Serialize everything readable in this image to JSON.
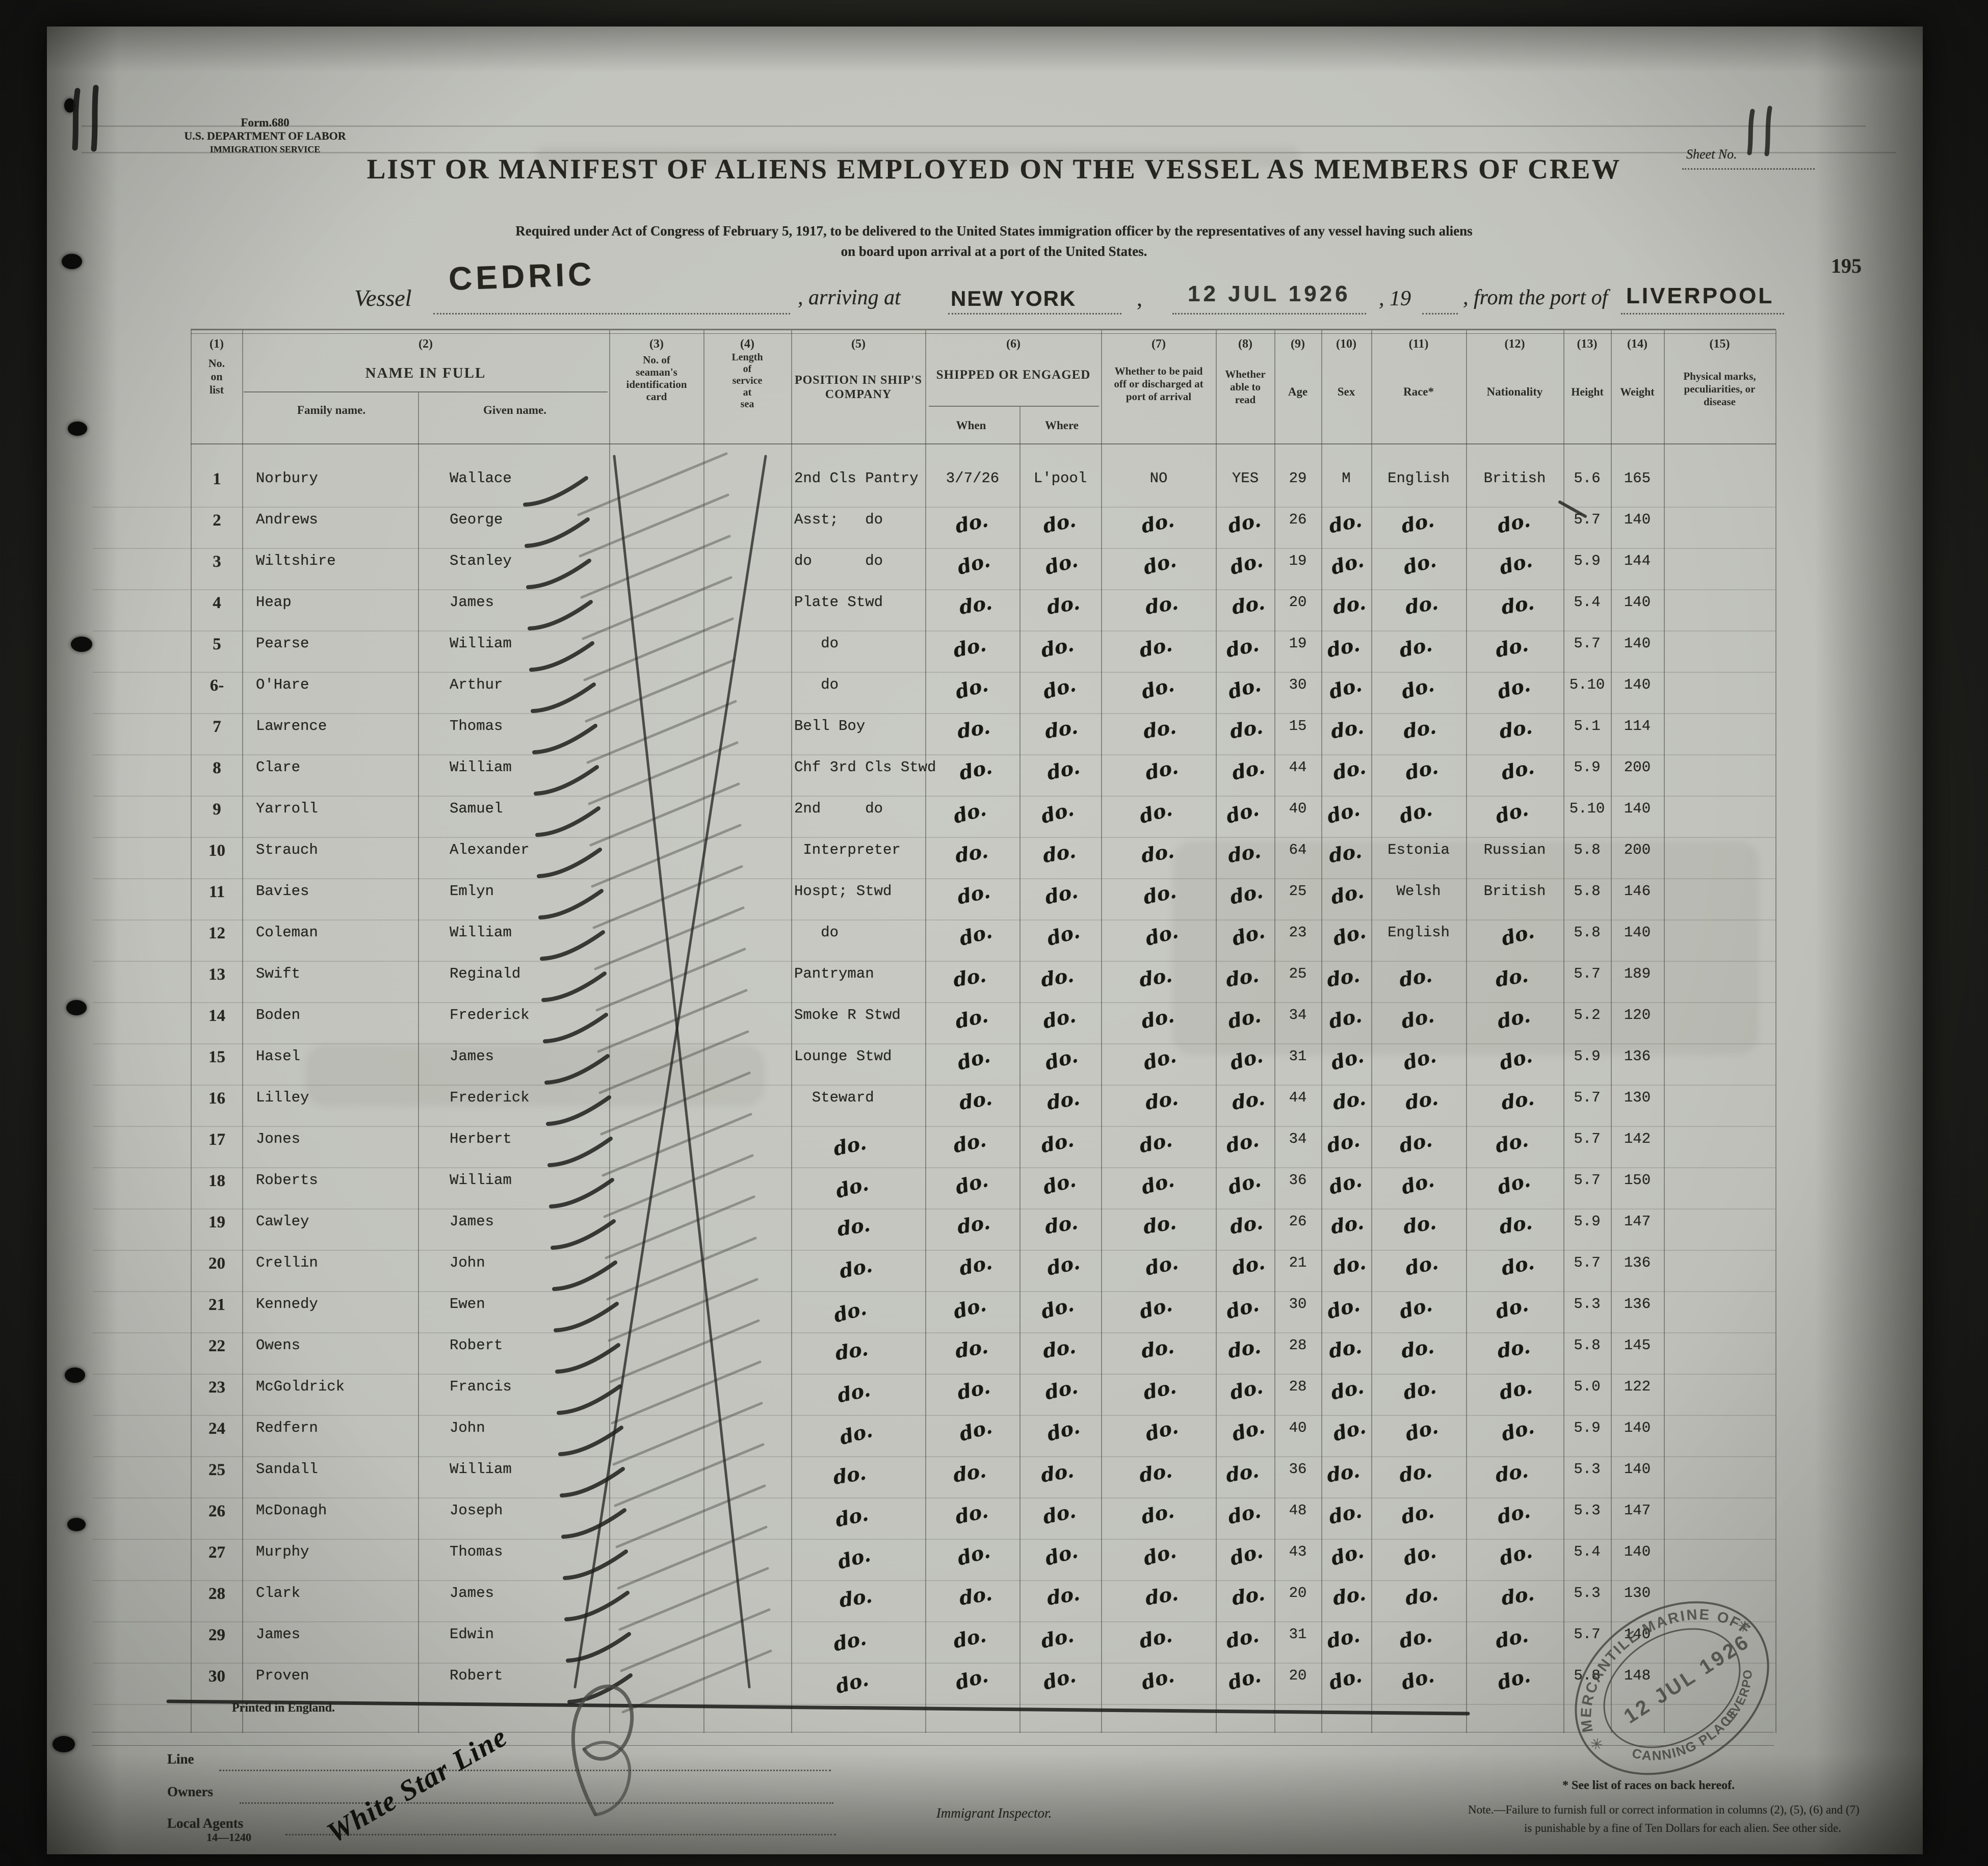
{
  "page": {
    "handwritten_mark": "11",
    "form_no": "Form.680",
    "department": "U.S. DEPARTMENT OF LABOR",
    "service": "IMMIGRATION SERVICE",
    "sheet_label": "Sheet No.",
    "sheet_no": "11",
    "page_stamp_no": "195",
    "title": "LIST OR MANIFEST OF ALIENS EMPLOYED ON THE VESSEL AS MEMBERS OF CREW",
    "subtitle_line1": "Required under Act of Congress of February 5, 1917, to be delivered to the United States immigration officer by the representatives of any vessel having such aliens",
    "subtitle_line2": "on board upon arrival at a port of the United States.",
    "vessel_label": "Vessel",
    "vessel_name": "CEDRIC",
    "arriving_label": ", arriving at",
    "port_of_arrival": "NEW YORK",
    "arrival_date_stamp": "12 JUL 1926",
    "year_fragment": ", 19",
    "from_label": ", from the port of",
    "port_of_departure": "LIVERPOOL"
  },
  "table": {
    "columns": {
      "c1": {
        "num": "(1)",
        "label": "No.\non\nlist"
      },
      "c2": {
        "num": "(2)",
        "label": "NAME IN FULL",
        "sub1": "Family name.",
        "sub2": "Given name."
      },
      "c3": {
        "num": "(3)",
        "label": "No. of\nseaman's\nidentification\ncard"
      },
      "c4": {
        "num": "(4)",
        "label": "Length\nof\nservice\nat\nsea"
      },
      "c5": {
        "num": "(5)",
        "label": "POSITION IN SHIP'S\nCOMPANY"
      },
      "c6": {
        "num": "(6)",
        "label": "SHIPPED OR ENGAGED",
        "sub1": "When",
        "sub2": "Where"
      },
      "c7": {
        "num": "(7)",
        "label": "Whether to be paid\noff or discharged at\nport of arrival"
      },
      "c8": {
        "num": "(8)",
        "label": "Whether\nable to\nread"
      },
      "c9": {
        "num": "(9)",
        "label": "Age"
      },
      "c10": {
        "num": "(10)",
        "label": "Sex"
      },
      "c11": {
        "num": "(11)",
        "label": "Race*"
      },
      "c12": {
        "num": "(12)",
        "label": "Nationality"
      },
      "c13": {
        "num": "(13)",
        "label": "Height"
      },
      "c14": {
        "num": "(14)",
        "label": "Weight"
      },
      "c15": {
        "num": "(15)",
        "label": "Physical marks,\npeculiarities, or\ndisease"
      }
    },
    "rows": [
      {
        "no": "1",
        "family": "Norbury",
        "given": "Wallace",
        "position": "2nd Cls Pantry",
        "when": "3/7/26",
        "where": "L'pool",
        "paid": "NO",
        "read": "YES",
        "age": "29",
        "sex": "M",
        "race": "English",
        "nat": "British",
        "height": "5.6",
        "weight": "165"
      },
      {
        "no": "2",
        "family": "Andrews",
        "given": "George",
        "position": "Asst;   do",
        "when": "do.",
        "where": "do.",
        "paid": "do.",
        "read": "do.",
        "age": "26",
        "sex": "do.",
        "race": "do.",
        "nat": "do.",
        "height": "5.7",
        "weight": "140"
      },
      {
        "no": "3",
        "family": "Wiltshire",
        "given": "Stanley",
        "position": "do      do",
        "when": "do.",
        "where": "do.",
        "paid": "do.",
        "read": "do.",
        "age": "19",
        "sex": "do.",
        "race": "do.",
        "nat": "do.",
        "height": "5.9",
        "weight": "144"
      },
      {
        "no": "4",
        "family": "Heap",
        "given": "James",
        "position": "Plate Stwd",
        "when": "do.",
        "where": "do.",
        "paid": "do.",
        "read": "do.",
        "age": "20",
        "sex": "do.",
        "race": "do.",
        "nat": "do.",
        "height": "5.4",
        "weight": "140"
      },
      {
        "no": "5",
        "family": "Pearse",
        "given": "William",
        "position": "   do",
        "when": "do.",
        "where": "do.",
        "paid": "do.",
        "read": "do.",
        "age": "19",
        "sex": "do.",
        "race": "do.",
        "nat": "do.",
        "height": "5.7",
        "weight": "140"
      },
      {
        "no": "6-",
        "family": "O'Hare",
        "given": "Arthur",
        "position": "   do",
        "when": "do.",
        "where": "do.",
        "paid": "do.",
        "read": "do.",
        "age": "30",
        "sex": "do.",
        "race": "do.",
        "nat": "do.",
        "height": "5.10",
        "weight": "140"
      },
      {
        "no": "7",
        "family": "Lawrence",
        "given": "Thomas",
        "position": "Bell Boy",
        "when": "do.",
        "where": "do.",
        "paid": "do.",
        "read": "do.",
        "age": "15",
        "sex": "do.",
        "race": "do.",
        "nat": "do.",
        "height": "5.1",
        "weight": "114"
      },
      {
        "no": "8",
        "family": "Clare",
        "given": "William",
        "position": "Chf 3rd Cls Stwd",
        "when": "do.",
        "where": "do.",
        "paid": "do.",
        "read": "do.",
        "age": "44",
        "sex": "do.",
        "race": "do.",
        "nat": "do.",
        "height": "5.9",
        "weight": "200"
      },
      {
        "no": "9",
        "family": "Yarroll",
        "given": "Samuel",
        "position": "2nd     do",
        "when": "do.",
        "where": "do.",
        "paid": "do.",
        "read": "do.",
        "age": "40",
        "sex": "do.",
        "race": "do.",
        "nat": "do.",
        "height": "5.10",
        "weight": "140"
      },
      {
        "no": "10",
        "family": "Strauch",
        "given": "Alexander",
        "position": " Interpreter",
        "when": "do.",
        "where": "do.",
        "paid": "do.",
        "read": "do.",
        "age": "64",
        "sex": "do.",
        "race": "Estonia",
        "nat": "Russian",
        "height": "5.8",
        "weight": "200"
      },
      {
        "no": "11",
        "family": "Bavies",
        "given": "Emlyn",
        "position": "Hospt; Stwd",
        "when": "do.",
        "where": "do.",
        "paid": "do.",
        "read": "do.",
        "age": "25",
        "sex": "do.",
        "race": "Welsh",
        "nat": "British",
        "height": "5.8",
        "weight": "146"
      },
      {
        "no": "12",
        "family": "Coleman",
        "given": "William",
        "position": "   do",
        "when": "do.",
        "where": "do.",
        "paid": "do.",
        "read": "do.",
        "age": "23",
        "sex": "do.",
        "race": "English",
        "nat": "do.",
        "height": "5.8",
        "weight": "140"
      },
      {
        "no": "13",
        "family": "Swift",
        "given": "Reginald",
        "position": "Pantryman",
        "when": "do.",
        "where": "do.",
        "paid": "do.",
        "read": "do.",
        "age": "25",
        "sex": "do.",
        "race": "do.",
        "nat": "do.",
        "height": "5.7",
        "weight": "189"
      },
      {
        "no": "14",
        "family": "Boden",
        "given": "Frederick",
        "position": "Smoke R Stwd",
        "when": "do.",
        "where": "do.",
        "paid": "do.",
        "read": "do.",
        "age": "34",
        "sex": "do.",
        "race": "do.",
        "nat": "do.",
        "height": "5.2",
        "weight": "120"
      },
      {
        "no": "15",
        "family": "Hasel",
        "given": "James",
        "position": "Lounge Stwd",
        "when": "do.",
        "where": "do.",
        "paid": "do.",
        "read": "do.",
        "age": "31",
        "sex": "do.",
        "race": "do.",
        "nat": "do.",
        "height": "5.9",
        "weight": "136"
      },
      {
        "no": "16",
        "family": "Lilley",
        "given": "Frederick",
        "position": "  Steward",
        "when": "do.",
        "where": "do.",
        "paid": "do.",
        "read": "do.",
        "age": "44",
        "sex": "do.",
        "race": "do.",
        "nat": "do.",
        "height": "5.7",
        "weight": "130"
      },
      {
        "no": "17",
        "family": "Jones",
        "given": "Herbert",
        "position": "do.",
        "when": "do.",
        "where": "do.",
        "paid": "do.",
        "read": "do.",
        "age": "34",
        "sex": "do.",
        "race": "do.",
        "nat": "do.",
        "height": "5.7",
        "weight": "142"
      },
      {
        "no": "18",
        "family": "Roberts",
        "given": "William",
        "position": "do.",
        "when": "do.",
        "where": "do.",
        "paid": "do.",
        "read": "do.",
        "age": "36",
        "sex": "do.",
        "race": "do.",
        "nat": "do.",
        "height": "5.7",
        "weight": "150"
      },
      {
        "no": "19",
        "family": "Cawley",
        "given": "James",
        "position": "do.",
        "when": "do.",
        "where": "do.",
        "paid": "do.",
        "read": "do.",
        "age": "26",
        "sex": "do.",
        "race": "do.",
        "nat": "do.",
        "height": "5.9",
        "weight": "147"
      },
      {
        "no": "20",
        "family": "Crellin",
        "given": "John",
        "position": "do.",
        "when": "do.",
        "where": "do.",
        "paid": "do.",
        "read": "do.",
        "age": "21",
        "sex": "do.",
        "race": "do.",
        "nat": "do.",
        "height": "5.7",
        "weight": "136"
      },
      {
        "no": "21",
        "family": "Kennedy",
        "given": "Ewen",
        "position": "do.",
        "when": "do.",
        "where": "do.",
        "paid": "do.",
        "read": "do.",
        "age": "30",
        "sex": "do.",
        "race": "do.",
        "nat": "do.",
        "height": "5.3",
        "weight": "136"
      },
      {
        "no": "22",
        "family": "Owens",
        "given": "Robert",
        "position": "do.",
        "when": "do.",
        "where": "do.",
        "paid": "do.",
        "read": "do.",
        "age": "28",
        "sex": "do.",
        "race": "do.",
        "nat": "do.",
        "height": "5.8",
        "weight": "145"
      },
      {
        "no": "23",
        "family": "McGoldrick",
        "given": "Francis",
        "position": "do.",
        "when": "do.",
        "where": "do.",
        "paid": "do.",
        "read": "do.",
        "age": "28",
        "sex": "do.",
        "race": "do.",
        "nat": "do.",
        "height": "5.0",
        "weight": "122"
      },
      {
        "no": "24",
        "family": "Redfern",
        "given": "John",
        "position": "do.",
        "when": "do.",
        "where": "do.",
        "paid": "do.",
        "read": "do.",
        "age": "40",
        "sex": "do.",
        "race": "do.",
        "nat": "do.",
        "height": "5.9",
        "weight": "140"
      },
      {
        "no": "25",
        "family": "Sandall",
        "given": "William",
        "position": "do.",
        "when": "do.",
        "where": "do.",
        "paid": "do.",
        "read": "do.",
        "age": "36",
        "sex": "do.",
        "race": "do.",
        "nat": "do.",
        "height": "5.3",
        "weight": "140"
      },
      {
        "no": "26",
        "family": "McDonagh",
        "given": "Joseph",
        "position": "do.",
        "when": "do.",
        "where": "do.",
        "paid": "do.",
        "read": "do.",
        "age": "48",
        "sex": "do.",
        "race": "do.",
        "nat": "do.",
        "height": "5.3",
        "weight": "147"
      },
      {
        "no": "27",
        "family": "Murphy",
        "given": "Thomas",
        "position": "do.",
        "when": "do.",
        "where": "do.",
        "paid": "do.",
        "read": "do.",
        "age": "43",
        "sex": "do.",
        "race": "do.",
        "nat": "do.",
        "height": "5.4",
        "weight": "140"
      },
      {
        "no": "28",
        "family": "Clark",
        "given": "James",
        "position": "do.",
        "when": "do.",
        "where": "do.",
        "paid": "do.",
        "read": "do.",
        "age": "20",
        "sex": "do.",
        "race": "do.",
        "nat": "do.",
        "height": "5.3",
        "weight": "130"
      },
      {
        "no": "29",
        "family": "James",
        "given": "Edwin",
        "position": "do.",
        "when": "do.",
        "where": "do.",
        "paid": "do.",
        "read": "do.",
        "age": "31",
        "sex": "do.",
        "race": "do.",
        "nat": "do.",
        "height": "5.7",
        "weight": "140"
      },
      {
        "no": "30",
        "family": "Proven",
        "given": "Robert",
        "position": "do.",
        "when": "do.",
        "where": "do.",
        "paid": "do.",
        "read": "do.",
        "age": "20",
        "sex": "do.",
        "race": "do.",
        "nat": "do.",
        "height": "5.8",
        "weight": "148"
      }
    ]
  },
  "footer": {
    "printed_in": "Printed in England.",
    "line_label": "Line",
    "owners_label": "Owners",
    "agents_label": "Local Agents",
    "form_code": "14—1240",
    "company_stamp": "White Star Line",
    "inspector_label": "Immigrant Inspector.",
    "note_races": "* See list of races on back hereof.",
    "note_fine_1": "Note.—Failure to furnish full or correct information in columns (2), (5), (6) and (7)",
    "note_fine_2": "is punishable by a fine of Ten Dollars for each alien.  See other side."
  },
  "office_stamp": {
    "arc_top": "MERCANTILE MARINE OFFICE",
    "date": "12 JUL 1926",
    "arc_bottom": "CANNING PLACE",
    "arc_side": "LIVERPOOL"
  }
}
